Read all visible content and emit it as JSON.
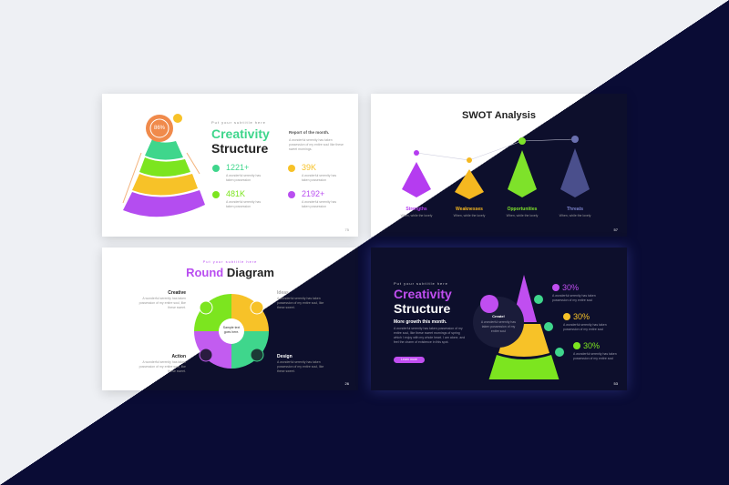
{
  "slides": [
    {
      "subtitle": "Put your subtitle here",
      "title_1": "Creativity",
      "title_2": "Structure",
      "badge": "86%",
      "report_title": "Report of the month.",
      "report_text": "A wonderful serenity has taken possession of my entire soul like these sweet mornings.",
      "stats": [
        {
          "value": "1221+",
          "text": "A wonderful serenity has taken possession",
          "color": "#3fd68c"
        },
        {
          "value": "481K",
          "text": "A wonderful serenity has taken possession",
          "color": "#7ce51f"
        },
        {
          "value": "39K",
          "text": "A wonderful serenity has taken possession",
          "color": "#f7c228"
        },
        {
          "value": "2192+",
          "text": "A wonderful serenity has taken possession",
          "color": "#b94ef0"
        }
      ],
      "page": "75"
    },
    {
      "title": "SWOT Analysis",
      "items": [
        {
          "label": "Strengths",
          "text": "When, while the lovely",
          "color": "#b53cf0"
        },
        {
          "label": "Weaknesses",
          "text": "When, while the lovely",
          "color": "#f5b820"
        },
        {
          "label": "Opportunities",
          "text": "When, while the lovely",
          "color": "#7ee22a"
        },
        {
          "label": "Threats",
          "text": "When, while the lovely",
          "color": "#4a4f8c"
        }
      ],
      "page": "57"
    },
    {
      "subtitle": "Put your subtitle here",
      "title_1": "Round",
      "title_2": "Diagram",
      "center": "Sample text goes here.",
      "items": [
        {
          "label": "Creative",
          "text": "A wonderful serenity has taken possession of my entire soul, like these sweet."
        },
        {
          "label": "Ideas",
          "text": "A wonderful serenity has taken possession of my entire soul, like these sweet."
        },
        {
          "label": "Action",
          "text": "A wonderful serenity has taken possession of my entire soul, like these sweet."
        },
        {
          "label": "Design",
          "text": "A wonderful serenity has taken possession of my entire soul, like these sweet."
        }
      ],
      "page": "26"
    },
    {
      "subtitle": "Put your subtitle here",
      "title_1": "Creativity",
      "title_2": "Structure",
      "heading": "More growth this month.",
      "paragraph": "A wonderful serenity has taken possession of my entire soul, like these sweet mornings of spring which I enjoy with my whole heart. I am alone, and feel the charm of existence in this spot.",
      "button": "Learn more",
      "create_title": "Create!",
      "create_text": "A wonderful serenity has taken possession of my entire soul",
      "stats": [
        {
          "value": "30%",
          "text": "A wonderful serenity has taken possession of my entire soul",
          "color": "#c04ef0"
        },
        {
          "value": "30%",
          "text": "A wonderful serenity has taken possession of my entire soul",
          "color": "#f7c228"
        },
        {
          "value": "30%",
          "text": "A wonderful serenity has taken possession of my entire soul",
          "color": "#7ce51f"
        }
      ],
      "page": "53"
    }
  ]
}
